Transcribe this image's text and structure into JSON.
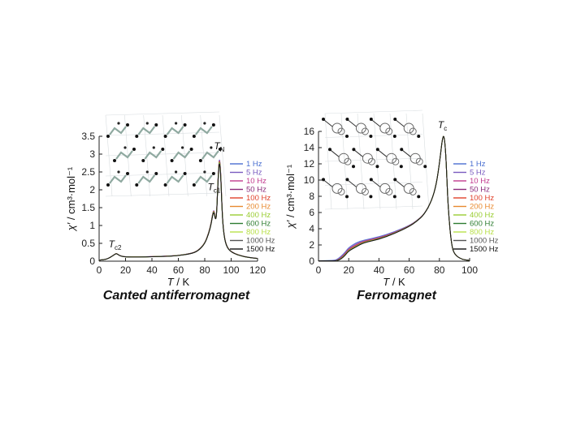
{
  "chart_data": [
    {
      "type": "line",
      "caption": "Canted antiferromagnet",
      "xlabel_italic": "T",
      "xlabel_unit": " / K",
      "ylabel_italic": "χ′",
      "ylabel_unit": " / cm³·mol⁻¹",
      "xlim": [
        0,
        120
      ],
      "ylim": [
        0,
        3.5
      ],
      "xticks": [
        "0",
        "20",
        "40",
        "60",
        "80",
        "100",
        "120"
      ],
      "yticks": [
        "0",
        "0.5",
        "1",
        "1.5",
        "2",
        "2.5",
        "3",
        "3.5"
      ],
      "legend_placement": "right",
      "legend": [
        "1 Hz",
        "5 Hz",
        "10 Hz",
        "50 Hz",
        "100 Hz",
        "200 Hz",
        "400 Hz",
        "600 Hz",
        "800 Hz",
        "1000 Hz",
        "1500 Hz"
      ],
      "legend_colors": [
        "#4a6fd1",
        "#7a5cc0",
        "#c23a8e",
        "#8a2a7a",
        "#e0402a",
        "#e88a30",
        "#9acd32",
        "#2e7d32",
        "#b9e04a",
        "#555555",
        "#111111"
      ],
      "annotations": [
        {
          "base": "T",
          "sub": "c2",
          "x": 12,
          "y": 0.25
        },
        {
          "base": "T",
          "sub": "c1",
          "x": 87,
          "y": 1.85
        },
        {
          "base": "T",
          "sub": "N",
          "x": 91,
          "y": 3.0
        }
      ],
      "x": [
        0,
        5,
        8,
        10,
        12,
        13,
        14,
        16,
        20,
        30,
        40,
        50,
        60,
        70,
        75,
        80,
        83,
        85,
        86,
        87,
        88,
        89,
        90,
        91,
        92,
        93,
        94,
        96,
        100,
        110,
        120
      ],
      "y": [
        0.03,
        0.05,
        0.1,
        0.15,
        0.2,
        0.22,
        0.2,
        0.15,
        0.12,
        0.12,
        0.13,
        0.14,
        0.16,
        0.22,
        0.3,
        0.5,
        0.8,
        1.1,
        1.35,
        1.45,
        1.2,
        1.3,
        2.3,
        2.95,
        2.6,
        1.6,
        0.9,
        0.45,
        0.25,
        0.12,
        0.08
      ]
    },
    {
      "type": "line",
      "caption": "Ferromagnet",
      "xlabel_italic": "T",
      "xlabel_unit": " / K",
      "ylabel_italic": "χ′",
      "ylabel_unit": " / cm³·mol⁻¹",
      "xlim": [
        0,
        100
      ],
      "ylim": [
        0,
        16
      ],
      "xticks": [
        "0",
        "20",
        "40",
        "60",
        "80",
        "100"
      ],
      "yticks": [
        "0",
        "2",
        "4",
        "6",
        "8",
        "10",
        "12",
        "14",
        "16"
      ],
      "legend_placement": "right",
      "legend": [
        "1 Hz",
        "5 Hz",
        "10 Hz",
        "50 Hz",
        "100 Hz",
        "200 Hz",
        "400 Hz",
        "600 Hz",
        "800 Hz",
        "1000 Hz",
        "1500 Hz"
      ],
      "legend_colors": [
        "#4a6fd1",
        "#7a5cc0",
        "#c23a8e",
        "#8a2a7a",
        "#e0402a",
        "#e88a30",
        "#9acd32",
        "#2e7d32",
        "#b9e04a",
        "#555555",
        "#111111"
      ],
      "annotations": [
        {
          "base": "T",
          "sub": "c",
          "x": 82,
          "y": 15.8
        }
      ],
      "x": [
        0,
        10,
        12,
        15,
        18,
        20,
        25,
        30,
        40,
        50,
        60,
        65,
        70,
        75,
        78,
        80,
        82,
        83,
        84,
        85,
        86,
        88,
        90,
        95,
        100
      ],
      "y": [
        0.05,
        0.1,
        0.2,
        0.6,
        1.2,
        1.7,
        2.3,
        2.6,
        3.0,
        3.6,
        4.4,
        5.0,
        5.8,
        7.5,
        9.5,
        12.0,
        15.2,
        15.5,
        14.0,
        10.0,
        6.0,
        2.0,
        0.8,
        0.2,
        0.1
      ],
      "low_t_spread": [
        0,
        -0.6,
        -1.2,
        -1.6,
        -1.9,
        -2.1,
        -2.3,
        -2.5,
        -2.6,
        -2.7,
        -2.8
      ]
    }
  ]
}
